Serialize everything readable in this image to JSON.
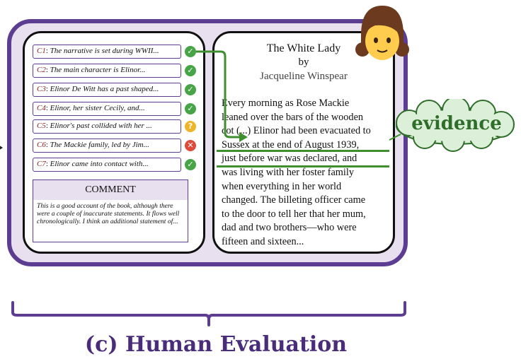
{
  "claims": [
    {
      "id": "C1",
      "text": "The narrative is set during WWII...",
      "status": "ok"
    },
    {
      "id": "C2",
      "text": "The main character is Elinor...",
      "status": "ok"
    },
    {
      "id": "C3",
      "text": "Elinor De Witt has a past shaped...",
      "status": "ok"
    },
    {
      "id": "C4",
      "text": "Elinor, her sister Cecily, and...",
      "status": "ok"
    },
    {
      "id": "C5",
      "text": "Elinor's past collided with her ...",
      "status": "unsure"
    },
    {
      "id": "C6",
      "text": "The Mackie family, led by Jim...",
      "status": "wrong"
    },
    {
      "id": "C7",
      "text": "Elinor came into contact with...",
      "status": "ok"
    }
  ],
  "comment": {
    "heading": "COMMENT",
    "body": "This is a good account of the book, although there were a couple of inaccurate statements. It flows well chronologically. I think an additional statement of..."
  },
  "book": {
    "title": "The White Lady",
    "by": "by",
    "author": "Jacqueline Winspear",
    "passage_lines": [
      "Every morning as Rose Mackie",
      "leaned over the bars of the wooden",
      "cot (...) Elinor had been evacuated to",
      "Sussex at the end of August 1939,",
      "just before war was declared, and",
      "was living with her foster family",
      "when everything in her world",
      "changed. The billeting officer came",
      "to the door to tell her that her mum,",
      "dad and two brothers—who were",
      "fifteen and sixteen..."
    ]
  },
  "evidence_label": "evidence",
  "caption": "(c) Human Evaluation",
  "colors": {
    "accent_purple": "#5c3d91",
    "panel_fill": "#e8e0ee",
    "evidence_green": "#3f8f2f",
    "ok": "#47a447",
    "unsure": "#f0b429",
    "wrong": "#e04a3a"
  },
  "icons": {
    "ok": "check-circle-icon",
    "unsure": "question-circle-icon",
    "wrong": "x-circle-icon",
    "annotator": "girl-emoji-icon"
  }
}
